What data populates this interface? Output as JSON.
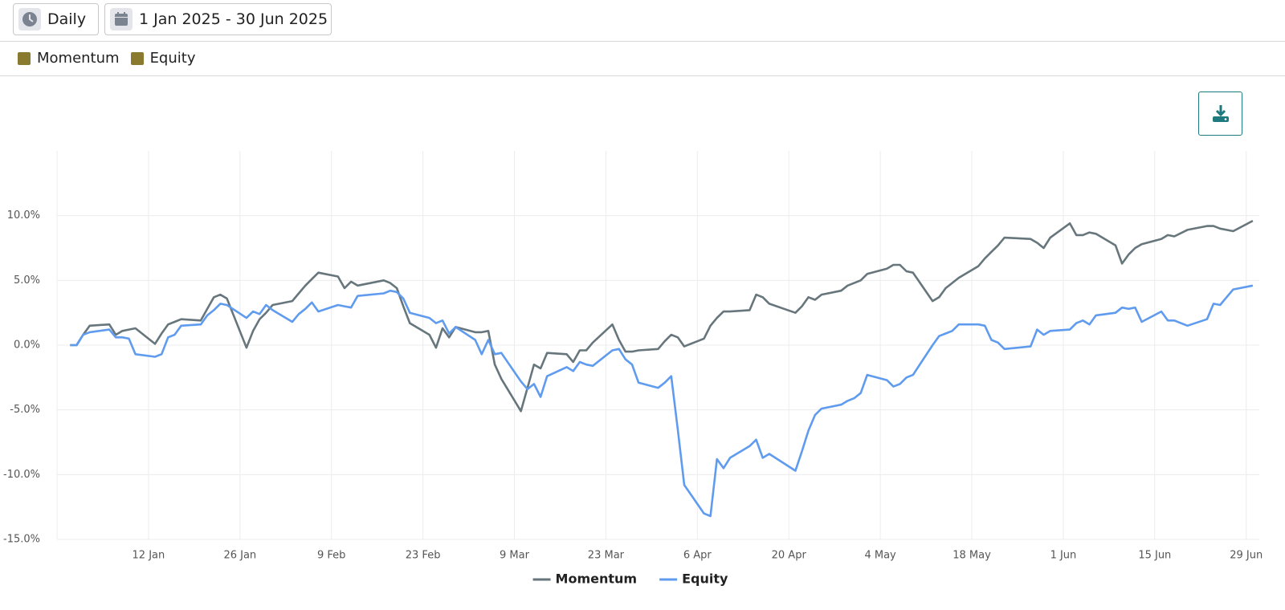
{
  "toolbar": {
    "interval": "Daily",
    "date_range": "1 Jan 2025 - 30 Jun 2025"
  },
  "chart_data": {
    "type": "line",
    "x": [
      "31 Dec",
      "1 Jan",
      "2 Jan",
      "3 Jan",
      "6 Jan",
      "7 Jan",
      "8 Jan",
      "9 Jan",
      "10 Jan",
      "13 Jan",
      "14 Jan",
      "15 Jan",
      "16 Jan",
      "17 Jan",
      "20 Jan",
      "21 Jan",
      "22 Jan",
      "23 Jan",
      "24 Jan",
      "27 Jan",
      "28 Jan",
      "29 Jan",
      "30 Jan",
      "31 Jan",
      "3 Feb",
      "4 Feb",
      "5 Feb",
      "6 Feb",
      "7 Feb",
      "10 Feb",
      "11 Feb",
      "12 Feb",
      "13 Feb",
      "17 Feb",
      "18 Feb",
      "19 Feb",
      "20 Feb",
      "21 Feb",
      "24 Feb",
      "25 Feb",
      "26 Feb",
      "27 Feb",
      "28 Feb",
      "3 Mar",
      "4 Mar",
      "5 Mar",
      "6 Mar",
      "7 Mar",
      "10 Mar",
      "11 Mar",
      "12 Mar",
      "13 Mar",
      "14 Mar",
      "17 Mar",
      "18 Mar",
      "19 Mar",
      "20 Mar",
      "21 Mar",
      "24 Mar",
      "25 Mar",
      "26 Mar",
      "27 Mar",
      "28 Mar",
      "31 Mar",
      "1 Apr",
      "2 Apr",
      "3 Apr",
      "4 Apr",
      "7 Apr",
      "8 Apr",
      "9 Apr",
      "10 Apr",
      "11 Apr",
      "14 Apr",
      "15 Apr",
      "16 Apr",
      "17 Apr",
      "21 Apr",
      "22 Apr",
      "23 Apr",
      "24 Apr",
      "25 Apr",
      "28 Apr",
      "29 Apr",
      "30 Apr",
      "1 May",
      "2 May",
      "5 May",
      "6 May",
      "7 May",
      "8 May",
      "9 May",
      "12 May",
      "13 May",
      "14 May",
      "15 May",
      "16 May",
      "19 May",
      "20 May",
      "21 May",
      "22 May",
      "23 May",
      "27 May",
      "28 May",
      "29 May",
      "30 May",
      "2 Jun",
      "3 Jun",
      "4 Jun",
      "5 Jun",
      "6 Jun",
      "9 Jun",
      "10 Jun",
      "11 Jun",
      "12 Jun",
      "13 Jun",
      "16 Jun",
      "17 Jun",
      "18 Jun",
      "20 Jun",
      "23 Jun",
      "24 Jun",
      "25 Jun",
      "26 Jun",
      "27 Jun",
      "30 Jun"
    ],
    "series": [
      {
        "name": "Momentum",
        "color": "#66767c",
        "legend_color": "#8a7a30",
        "values": [
          0,
          0,
          0.8,
          1.5,
          1.6,
          0.8,
          1.1,
          1.2,
          1.3,
          0.1,
          0.9,
          1.6,
          1.8,
          2.0,
          1.9,
          2.8,
          3.7,
          3.9,
          3.6,
          -0.2,
          1.1,
          2.0,
          2.5,
          3.1,
          3.4,
          4.0,
          4.6,
          5.1,
          5.6,
          5.3,
          4.4,
          4.9,
          4.6,
          5.0,
          4.8,
          4.4,
          3.0,
          1.7,
          0.8,
          -0.2,
          1.3,
          0.6,
          1.4,
          1.0,
          1.0,
          1.1,
          -1.5,
          -2.6,
          -5.1,
          -3.3,
          -1.5,
          -1.8,
          -0.6,
          -0.7,
          -1.3,
          -0.4,
          -0.4,
          0.2,
          1.6,
          0.4,
          -0.5,
          -0.5,
          -0.4,
          -0.3,
          0.3,
          0.8,
          0.6,
          -0.1,
          0.5,
          1.5,
          2.1,
          2.6,
          2.6,
          2.7,
          3.9,
          3.7,
          3.2,
          2.5,
          3.0,
          3.7,
          3.5,
          3.9,
          4.2,
          4.6,
          4.8,
          5.0,
          5.5,
          5.9,
          6.2,
          6.2,
          5.7,
          5.6,
          3.4,
          3.7,
          4.4,
          4.8,
          5.2,
          6.1,
          6.7,
          7.2,
          7.7,
          8.3,
          8.2,
          7.9,
          7.5,
          8.3,
          9.4,
          8.5,
          8.5,
          8.7,
          8.6,
          7.7,
          6.3,
          7.0,
          7.5,
          7.8,
          8.2,
          8.5,
          8.4,
          8.9,
          9.2,
          9.2,
          9.0,
          8.9,
          8.8,
          9.6
        ]
      },
      {
        "name": "Equity",
        "color": "#5f9bee",
        "legend_color": "#8a7a30",
        "values": [
          0,
          0,
          0.8,
          1.0,
          1.2,
          0.6,
          0.6,
          0.5,
          -0.7,
          -0.9,
          -0.7,
          0.6,
          0.8,
          1.5,
          1.6,
          2.3,
          2.7,
          3.2,
          3.1,
          2.1,
          2.6,
          2.4,
          3.1,
          2.7,
          1.8,
          2.4,
          2.8,
          3.3,
          2.6,
          3.1,
          3.0,
          2.9,
          3.8,
          4.0,
          4.2,
          4.1,
          3.6,
          2.5,
          2.1,
          1.7,
          1.9,
          0.9,
          1.4,
          0.4,
          -0.7,
          0.4,
          -0.7,
          -0.6,
          -2.8,
          -3.4,
          -3.0,
          -4.0,
          -2.4,
          -1.7,
          -2.0,
          -1.3,
          -1.5,
          -1.6,
          -0.4,
          -0.3,
          -1.1,
          -1.5,
          -2.9,
          -3.3,
          -2.9,
          -2.4,
          -6.5,
          -10.8,
          -13.0,
          -13.2,
          -8.8,
          -9.5,
          -8.7,
          -7.8,
          -7.3,
          -8.7,
          -8.4,
          -9.7,
          -8.2,
          -6.6,
          -5.4,
          -4.9,
          -4.6,
          -4.3,
          -4.1,
          -3.7,
          -2.3,
          -2.7,
          -3.2,
          -3.0,
          -2.5,
          -2.3,
          0.0,
          0.7,
          0.9,
          1.1,
          1.6,
          1.6,
          1.5,
          0.4,
          0.2,
          -0.3,
          -0.1,
          1.2,
          0.8,
          1.1,
          1.2,
          1.7,
          1.9,
          1.6,
          2.3,
          2.5,
          2.9,
          2.8,
          2.9,
          1.8,
          2.6,
          1.9,
          1.9,
          1.5,
          2.0,
          3.2,
          3.1,
          3.7,
          4.3,
          4.6
        ]
      }
    ],
    "xlim": [
      "29 Dec",
      "1 Jul"
    ],
    "xticks": [
      "12 Jan",
      "26 Jan",
      "9 Feb",
      "23 Feb",
      "9 Mar",
      "23 Mar",
      "6 Apr",
      "20 Apr",
      "4 May",
      "18 May",
      "1 Jun",
      "15 Jun",
      "29 Jun"
    ],
    "ylim": [
      -15,
      15
    ],
    "yticks": [
      {
        "value": -15,
        "label": "-15.0%"
      },
      {
        "value": -10,
        "label": "-10.0%"
      },
      {
        "value": -5,
        "label": "-5.0%"
      },
      {
        "value": 0,
        "label": "0.0%"
      },
      {
        "value": 5,
        "label": "5.0%"
      },
      {
        "value": 10,
        "label": "10.0%"
      }
    ],
    "grid": true,
    "legend": "bottom"
  }
}
